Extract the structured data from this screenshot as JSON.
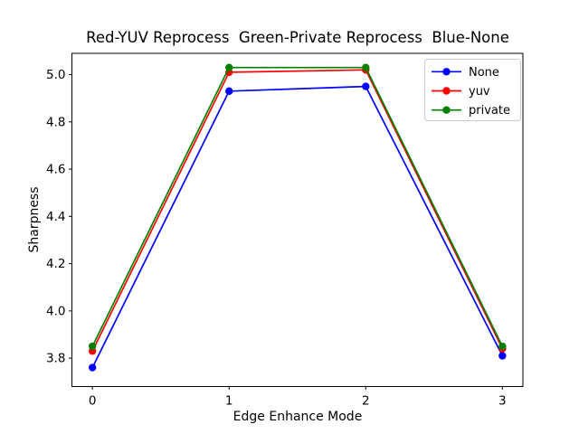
{
  "chart_data": {
    "type": "line",
    "title": "Red-YUV Reprocess  Green-Private Reprocess  Blue-None",
    "xlabel": "Edge Enhance Mode",
    "ylabel": "Sharpness",
    "x": [
      0,
      1,
      2,
      3
    ],
    "series": [
      {
        "name": "None",
        "color": "#0000ff",
        "values": [
          3.76,
          4.93,
          4.95,
          3.81
        ]
      },
      {
        "name": "yuv",
        "color": "#ff0000",
        "values": [
          3.83,
          5.01,
          5.02,
          3.84
        ]
      },
      {
        "name": "private",
        "color": "#008000",
        "values": [
          3.85,
          5.03,
          5.03,
          3.85
        ]
      }
    ],
    "xticks": [
      0,
      1,
      2,
      3
    ],
    "xtick_labels": [
      "0",
      "1",
      "2",
      "3"
    ],
    "yticks": [
      3.8,
      4.0,
      4.2,
      4.4,
      4.6,
      4.8,
      5.0
    ],
    "ytick_labels": [
      "3.8",
      "4.0",
      "4.2",
      "4.4",
      "4.6",
      "4.8",
      "5.0"
    ],
    "xlim": [
      -0.15,
      3.15
    ],
    "ylim": [
      3.68,
      5.09
    ],
    "grid": false,
    "legend_position": "upper right",
    "marker": "circle",
    "colors": {
      "frame": "#000000",
      "background": "#ffffff",
      "legend_border": "#cccccc"
    }
  }
}
